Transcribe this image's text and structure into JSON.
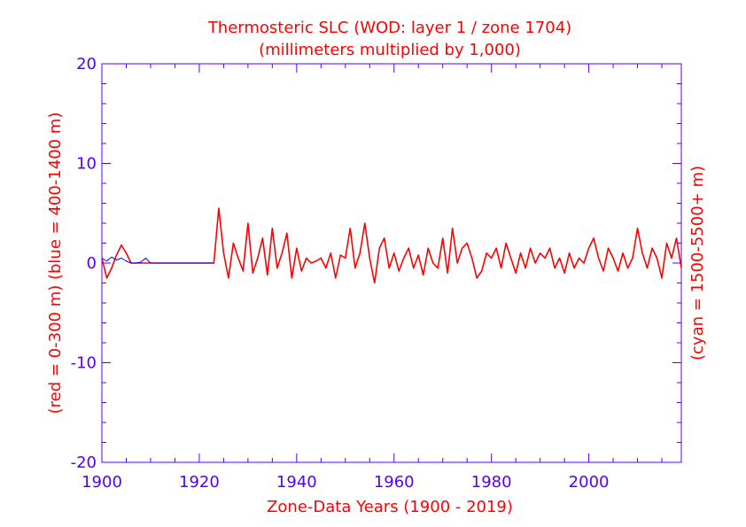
{
  "chart_data": {
    "type": "line",
    "title": "Thermosteric SLC (WOD: layer 1 / zone 1704)",
    "subtitle": "(millimeters multiplied by 1,000)",
    "xlabel": "Zone-Data Years (1900 - 2019)",
    "ylabel_left": "(red = 0-300 m)  (blue = 400-1400 m)",
    "ylabel_right": "(cyan = 1500-5500+ m)",
    "xlim": [
      1900,
      2019
    ],
    "ylim": [
      -20,
      20
    ],
    "xticks": [
      1900,
      1920,
      1940,
      1960,
      1980,
      2000
    ],
    "xtick_labels": [
      "1900",
      "1920",
      "1940",
      "1960",
      "1980",
      "2000"
    ],
    "yticks": [
      -20,
      -10,
      0,
      10,
      20
    ],
    "ytick_labels": [
      "-20",
      "-10",
      "0",
      "10",
      "20"
    ],
    "colors": {
      "red": "#ff0000",
      "blue": "#0000ff",
      "axis": "#5500ff",
      "title": "#ff0000"
    },
    "series": [
      {
        "name": "0-300 m (mean)",
        "color": "#ff0000",
        "x": [
          1900,
          1901,
          1902,
          1903,
          1904,
          1905,
          1906,
          1907,
          1908,
          1909,
          1910,
          1911,
          1912,
          1913,
          1914,
          1915,
          1916,
          1917,
          1918,
          1919,
          1920,
          1921,
          1922,
          1923,
          1924,
          1925,
          1926,
          1927,
          1928,
          1929,
          1930,
          1931,
          1932,
          1933,
          1934,
          1935,
          1936,
          1937,
          1938,
          1939,
          1940,
          1941,
          1942,
          1943,
          1944,
          1945,
          1946,
          1947,
          1948,
          1949,
          1950,
          1951,
          1952,
          1953,
          1954,
          1955,
          1956,
          1957,
          1958,
          1959,
          1960,
          1961,
          1962,
          1963,
          1964,
          1965,
          1966,
          1967,
          1968,
          1969,
          1970,
          1971,
          1972,
          1973,
          1974,
          1975,
          1976,
          1977,
          1978,
          1979,
          1980,
          1981,
          1982,
          1983,
          1984,
          1985,
          1986,
          1987,
          1988,
          1989,
          1990,
          1991,
          1992,
          1993,
          1994,
          1995,
          1996,
          1997,
          1998,
          1999,
          2000,
          2001,
          2002,
          2003,
          2004,
          2005,
          2006,
          2007,
          2008,
          2009,
          2010,
          2011,
          2012,
          2013,
          2014,
          2015,
          2016,
          2017,
          2018,
          2019
        ],
        "y": [
          0.5,
          -1.5,
          -0.5,
          0.8,
          1.8,
          1.0,
          0,
          0,
          0,
          0,
          0,
          0,
          0,
          0,
          0,
          0,
          0,
          0,
          0,
          0,
          0,
          0,
          0,
          0,
          5.5,
          1.0,
          -1.5,
          2.0,
          0.5,
          -0.8,
          4.0,
          -1.0,
          0.5,
          2.5,
          -1.2,
          3.5,
          -0.5,
          1.0,
          3.0,
          -1.5,
          1.5,
          -0.8,
          0.5,
          0,
          0.2,
          0.5,
          -0.5,
          1.0,
          -1.5,
          0.8,
          0.5,
          3.5,
          -0.5,
          1.0,
          4.0,
          0.5,
          -2.0,
          1.5,
          2.5,
          -0.5,
          1.0,
          -0.8,
          0.5,
          1.5,
          -0.5,
          0.8,
          -1.2,
          1.5,
          0,
          -0.5,
          2.5,
          -1.0,
          3.5,
          0,
          1.5,
          2.0,
          0.5,
          -1.5,
          -0.8,
          1.0,
          0.5,
          1.5,
          -0.5,
          2.0,
          0.5,
          -1.0,
          1.0,
          -0.5,
          1.5,
          0,
          1.0,
          0.5,
          1.5,
          -0.5,
          0.5,
          -1.0,
          1.0,
          -0.5,
          0.5,
          0,
          1.5,
          2.5,
          0.5,
          -0.8,
          1.5,
          0.5,
          -0.8,
          1.0,
          -0.5,
          0.5,
          3.5,
          1.0,
          -0.5,
          1.5,
          0.5,
          -1.5,
          2.0,
          0.5,
          2.5,
          -0.5
        ]
      },
      {
        "name": "400-1400 m",
        "color": "#0000ff",
        "x": [
          1900,
          1901,
          1902,
          1903,
          1904,
          1905,
          1906,
          1907,
          1908,
          1909,
          1910,
          1911,
          1912,
          1913,
          1914,
          1915,
          1916,
          1917,
          1918,
          1919,
          1920,
          1921,
          1922,
          1923
        ],
        "y": [
          0.5,
          0.2,
          0.6,
          0.3,
          0.5,
          0.2,
          0,
          0,
          0.1,
          0.5,
          0,
          0,
          0,
          0,
          0,
          0,
          0,
          0,
          0,
          0,
          0,
          0,
          0,
          0
        ]
      }
    ]
  }
}
